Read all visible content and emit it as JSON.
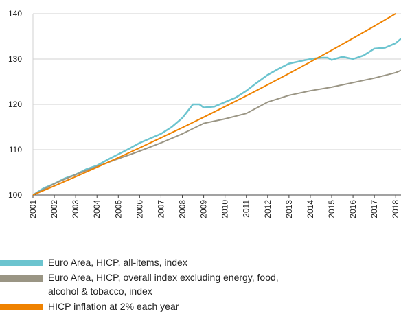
{
  "chart_data": {
    "type": "line",
    "xlim": [
      2001,
      2018.25
    ],
    "xticks": [
      2001,
      2002,
      2003,
      2004,
      2005,
      2006,
      2007,
      2008,
      2009,
      2010,
      2011,
      2012,
      2013,
      2014,
      2015,
      2016,
      2017,
      2018
    ],
    "ylim": [
      100,
      140
    ],
    "yticks": [
      100,
      110,
      120,
      130,
      140
    ],
    "grid": true,
    "legend": "bottom",
    "series": [
      {
        "name": "Euro Area, HICP, all-items, index",
        "color": "#6cc4cf",
        "x": [
          2001,
          2001.5,
          2002,
          2002.5,
          2003,
          2003.5,
          2004,
          2004.5,
          2005,
          2005.5,
          2006,
          2006.5,
          2007,
          2007.5,
          2008,
          2008.5,
          2008.8,
          2009,
          2009.5,
          2010,
          2010.5,
          2011,
          2011.5,
          2012,
          2012.5,
          2013,
          2013.5,
          2014,
          2014.5,
          2014.8,
          2015,
          2015.5,
          2016,
          2016.5,
          2017,
          2017.5,
          2018,
          2018.25
        ],
        "values": [
          100,
          101.5,
          102.5,
          103.7,
          104.5,
          105.7,
          106.5,
          107.8,
          109,
          110.2,
          111.5,
          112.5,
          113.5,
          115,
          117,
          120,
          120,
          119.3,
          119.5,
          120.5,
          121.5,
          123,
          124.8,
          126.5,
          127.8,
          129,
          129.5,
          130,
          130.3,
          130.3,
          129.8,
          130.5,
          130,
          130.8,
          132.3,
          132.5,
          133.5,
          134.5
        ]
      },
      {
        "name": "Euro Area, HICP, overall index excluding energy, food, alcohol & tobacco, index",
        "color": "#9a9584",
        "x": [
          2001,
          2002,
          2003,
          2004,
          2005,
          2006,
          2007,
          2008,
          2009,
          2010,
          2011,
          2012,
          2013,
          2014,
          2015,
          2016,
          2017,
          2018,
          2018.25
        ],
        "values": [
          100,
          102.5,
          104.5,
          106.3,
          108,
          109.7,
          111.5,
          113.5,
          115.8,
          116.8,
          118,
          120.5,
          122,
          123,
          123.8,
          124.8,
          125.8,
          127,
          127.5
        ]
      },
      {
        "name": "HICP inflation at 2% each year",
        "color": "#ef8200",
        "x": [
          2001,
          2002,
          2003,
          2004,
          2005,
          2006,
          2007,
          2008,
          2009,
          2010,
          2011,
          2012,
          2013,
          2014,
          2015,
          2016,
          2017,
          2018
        ],
        "values": [
          100,
          102,
          104.04,
          106.12,
          108.24,
          110.41,
          112.62,
          114.87,
          117.17,
          119.51,
          121.9,
          124.34,
          126.82,
          129.36,
          131.95,
          134.59,
          137.28,
          140.02
        ]
      }
    ]
  }
}
